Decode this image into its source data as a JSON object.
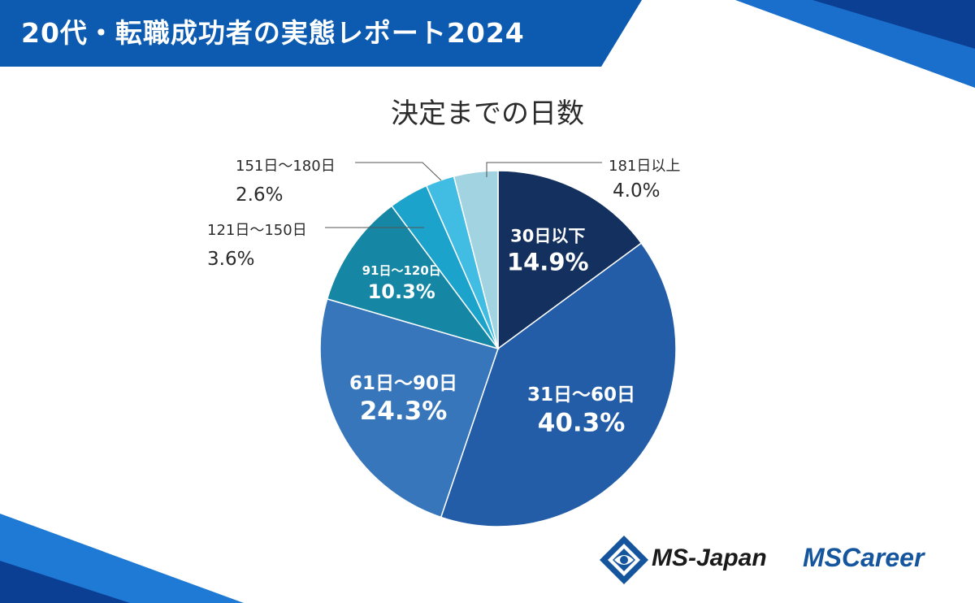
{
  "header": {
    "title": "20代・転職成功者の実態レポート2024"
  },
  "chart_data": {
    "type": "pie",
    "title": "決定までの日数",
    "start": "12 o'clock, clockwise",
    "slices": [
      {
        "label": "30日以下",
        "value": 14.9,
        "value_text": "14.9%",
        "color": "#14305e",
        "label_position": "inside"
      },
      {
        "label": "31日～60日",
        "value": 40.3,
        "value_text": "40.3%",
        "color": "#235da8",
        "label_position": "inside"
      },
      {
        "label": "61日～90日",
        "value": 24.3,
        "value_text": "24.3%",
        "color": "#3776bb",
        "label_position": "inside"
      },
      {
        "label": "91日～120日",
        "value": 10.3,
        "value_text": "10.3%",
        "color": "#1587a4",
        "label_position": "inside"
      },
      {
        "label": "121日～150日",
        "value": 3.6,
        "value_text": "3.6%",
        "color": "#1ba3cb",
        "label_position": "outside"
      },
      {
        "label": "151日～180日",
        "value": 2.6,
        "value_text": "2.6%",
        "color": "#41bce3",
        "label_position": "outside"
      },
      {
        "label": "181日以上",
        "value": 4.0,
        "value_text": "4.0%",
        "color": "#a1d3e1",
        "label_position": "outside"
      }
    ]
  },
  "logos": {
    "ms_japan": "MS-Japan",
    "ms_career": "MSCareer"
  },
  "colors": {
    "header": "#0d5bb0",
    "accent_dark": "#0a3f8a",
    "accent_light": "#1e78d0"
  }
}
